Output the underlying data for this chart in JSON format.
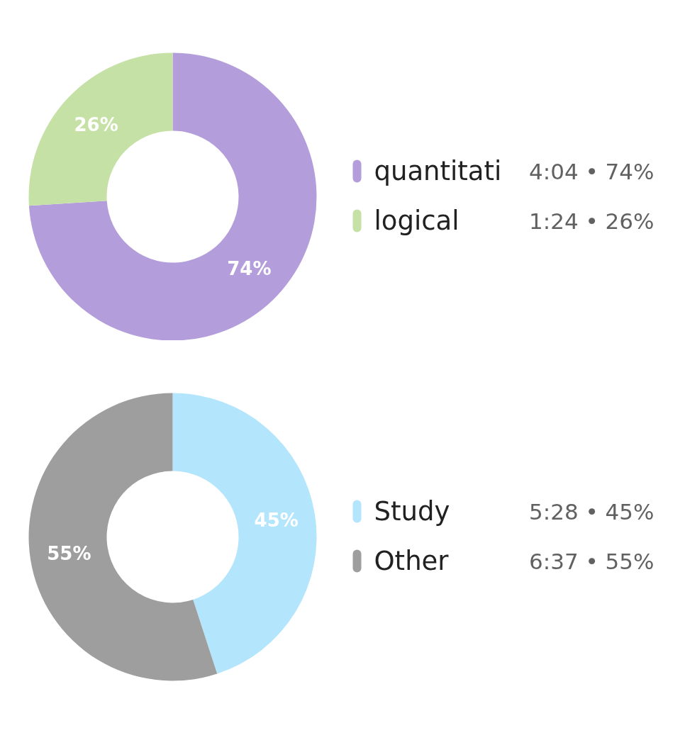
{
  "chart_data": [
    {
      "type": "donut",
      "categories": [
        "quantitati",
        "logical"
      ],
      "values": [
        74,
        26
      ],
      "colors": [
        "#b39ddb",
        "#c5e1a5"
      ],
      "value_labels": [
        "74%",
        "26%"
      ],
      "legend": "right",
      "annotations": [
        "4:04 • 74%",
        "1:24 • 26%"
      ]
    },
    {
      "type": "donut",
      "categories": [
        "Study",
        "Other"
      ],
      "values": [
        45,
        55
      ],
      "colors": [
        "#b3e5fc",
        "#9e9e9e"
      ],
      "value_labels": [
        "45%",
        "55%"
      ],
      "legend": "right",
      "annotations": [
        "5:28 • 45%",
        "6:37 • 55%"
      ]
    }
  ]
}
